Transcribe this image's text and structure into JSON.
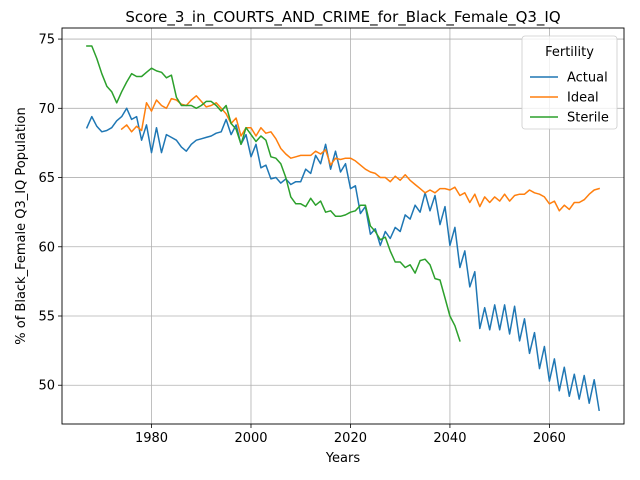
{
  "chart_data": {
    "type": "line",
    "title": "Score_3_in_COURTS_AND_CRIME_for_Black_Female_Q3_IQ",
    "xlabel": "Years",
    "ylabel": "% of Black_Female Q3_IQ Population",
    "xlim": [
      1962,
      2075
    ],
    "ylim": [
      47.2,
      75.8
    ],
    "xticks": [
      1980,
      2000,
      2020,
      2040,
      2060
    ],
    "yticks": [
      50,
      55,
      60,
      65,
      70,
      75
    ],
    "grid": true,
    "legend": {
      "title": "Fertility",
      "placement": "top-right"
    },
    "series": [
      {
        "name": "Actual",
        "color": "#1f77b4",
        "x": [
          1967,
          1968,
          1969,
          1970,
          1971,
          1972,
          1973,
          1974,
          1975,
          1976,
          1977,
          1978,
          1979,
          1980,
          1981,
          1982,
          1983,
          1984,
          1985,
          1986,
          1987,
          1988,
          1989,
          1990,
          1991,
          1992,
          1993,
          1994,
          1995,
          1996,
          1997,
          1998,
          1999,
          2000,
          2001,
          2002,
          2003,
          2004,
          2005,
          2006,
          2007,
          2008,
          2009,
          2010,
          2011,
          2012,
          2013,
          2014,
          2015,
          2016,
          2017,
          2018,
          2019,
          2020,
          2021,
          2022,
          2023,
          2024,
          2025,
          2026,
          2027,
          2028,
          2029,
          2030,
          2031,
          2032,
          2033,
          2034,
          2035,
          2036,
          2037,
          2038,
          2039,
          2040,
          2041,
          2042,
          2043,
          2044,
          2045,
          2046,
          2047,
          2048,
          2049,
          2050,
          2051,
          2052,
          2053,
          2054,
          2055,
          2056,
          2057,
          2058,
          2059,
          2060,
          2061,
          2062,
          2063,
          2064,
          2065,
          2066,
          2067,
          2068,
          2069,
          2070
        ],
        "y": [
          68.6,
          69.4,
          68.7,
          68.3,
          68.4,
          68.6,
          69.1,
          69.4,
          70.0,
          69.2,
          69.4,
          67.7,
          68.8,
          66.8,
          68.6,
          66.8,
          68.1,
          67.9,
          67.7,
          67.2,
          66.9,
          67.4,
          67.7,
          67.8,
          67.9,
          68.0,
          68.2,
          68.3,
          69.2,
          68.1,
          68.8,
          67.4,
          68.1,
          66.5,
          67.4,
          65.7,
          65.9,
          64.9,
          65.0,
          64.6,
          64.9,
          64.5,
          64.7,
          64.7,
          65.6,
          65.3,
          66.6,
          66.0,
          67.4,
          65.6,
          66.9,
          65.4,
          66.0,
          64.2,
          64.4,
          62.4,
          62.9,
          60.9,
          61.3,
          60.1,
          61.1,
          60.6,
          61.4,
          61.1,
          62.3,
          62.0,
          63.0,
          62.5,
          63.9,
          62.6,
          63.7,
          61.6,
          62.9,
          60.1,
          61.4,
          58.5,
          59.7,
          57.1,
          58.2,
          54.1,
          55.6,
          54.0,
          55.8,
          54.0,
          55.8,
          53.7,
          55.7,
          53.2,
          54.8,
          52.3,
          53.8,
          51.2,
          52.8,
          50.3,
          51.9,
          49.6,
          51.3,
          49.2,
          50.8,
          49.0,
          50.7,
          48.7,
          50.4,
          48.2
        ]
      },
      {
        "name": "Ideal",
        "color": "#ff7f0e",
        "x": [
          1974,
          1975,
          1976,
          1977,
          1978,
          1979,
          1980,
          1981,
          1982,
          1983,
          1984,
          1985,
          1986,
          1987,
          1988,
          1989,
          1990,
          1991,
          1992,
          1993,
          1994,
          1995,
          1996,
          1997,
          1998,
          1999,
          2000,
          2001,
          2002,
          2003,
          2004,
          2005,
          2006,
          2007,
          2008,
          2009,
          2010,
          2011,
          2012,
          2013,
          2014,
          2015,
          2016,
          2017,
          2018,
          2019,
          2020,
          2021,
          2022,
          2023,
          2024,
          2025,
          2026,
          2027,
          2028,
          2029,
          2030,
          2031,
          2032,
          2033,
          2034,
          2035,
          2036,
          2037,
          2038,
          2039,
          2040,
          2041,
          2042,
          2043,
          2044,
          2045,
          2046,
          2047,
          2048,
          2049,
          2050,
          2051,
          2052,
          2053,
          2054,
          2055,
          2056,
          2057,
          2058,
          2059,
          2060,
          2061,
          2062,
          2063,
          2064,
          2065,
          2066,
          2067,
          2068,
          2069,
          2070
        ],
        "y": [
          68.5,
          68.8,
          68.3,
          68.7,
          68.4,
          70.4,
          69.8,
          70.6,
          70.2,
          70.0,
          70.7,
          70.6,
          70.3,
          70.2,
          70.6,
          70.9,
          70.5,
          70.1,
          70.2,
          70.4,
          70.0,
          69.6,
          68.9,
          69.3,
          68.0,
          68.6,
          68.6,
          68.0,
          68.6,
          68.2,
          68.3,
          67.8,
          67.1,
          66.7,
          66.4,
          66.5,
          66.6,
          66.6,
          66.6,
          66.9,
          66.7,
          67.0,
          65.9,
          66.4,
          66.3,
          66.4,
          66.4,
          66.2,
          65.9,
          65.6,
          65.4,
          65.3,
          65.0,
          65.0,
          64.7,
          65.1,
          64.8,
          65.2,
          64.8,
          64.5,
          64.2,
          63.9,
          64.1,
          63.9,
          64.2,
          64.2,
          64.1,
          64.3,
          63.7,
          63.9,
          63.2,
          63.8,
          62.9,
          63.6,
          63.2,
          63.6,
          63.3,
          63.8,
          63.3,
          63.7,
          63.8,
          63.8,
          64.1,
          63.9,
          63.8,
          63.6,
          63.1,
          63.3,
          62.6,
          63.0,
          62.7,
          63.2,
          63.2,
          63.4,
          63.8,
          64.1,
          64.2
        ]
      },
      {
        "name": "Sterile",
        "color": "#2ca02c",
        "x": [
          1967,
          1968,
          1969,
          1970,
          1971,
          1972,
          1973,
          1974,
          1975,
          1976,
          1977,
          1978,
          1979,
          1980,
          1981,
          1982,
          1983,
          1984,
          1985,
          1986,
          1987,
          1988,
          1989,
          1990,
          1991,
          1992,
          1993,
          1994,
          1995,
          1996,
          1997,
          1998,
          1999,
          2000,
          2001,
          2002,
          2003,
          2004,
          2005,
          2006,
          2007,
          2008,
          2009,
          2010,
          2011,
          2012,
          2013,
          2014,
          2015,
          2016,
          2017,
          2018,
          2019,
          2020,
          2021,
          2022,
          2023,
          2024,
          2025,
          2026,
          2027,
          2028,
          2029,
          2030,
          2031,
          2032,
          2033,
          2034,
          2035,
          2036,
          2037,
          2038,
          2039,
          2040,
          2041,
          2042
        ],
        "y": [
          74.5,
          74.5,
          73.6,
          72.5,
          71.6,
          71.2,
          70.4,
          71.2,
          71.9,
          72.5,
          72.3,
          72.3,
          72.6,
          72.9,
          72.7,
          72.6,
          72.2,
          72.4,
          70.8,
          70.2,
          70.2,
          70.2,
          70.0,
          70.2,
          70.5,
          70.5,
          70.2,
          69.8,
          70.2,
          68.9,
          68.5,
          67.4,
          68.6,
          68.1,
          67.6,
          68.0,
          67.7,
          66.5,
          66.4,
          66.0,
          65.0,
          63.6,
          63.1,
          63.1,
          62.9,
          63.5,
          63.0,
          63.3,
          62.5,
          62.6,
          62.2,
          62.2,
          62.3,
          62.5,
          62.6,
          63.0,
          63.0,
          61.5,
          61.1,
          60.5,
          60.7,
          59.7,
          58.9,
          58.9,
          58.5,
          58.7,
          58.1,
          59.0,
          59.1,
          58.7,
          57.7,
          57.6,
          56.3,
          55.0,
          54.3,
          53.2
        ]
      }
    ]
  }
}
